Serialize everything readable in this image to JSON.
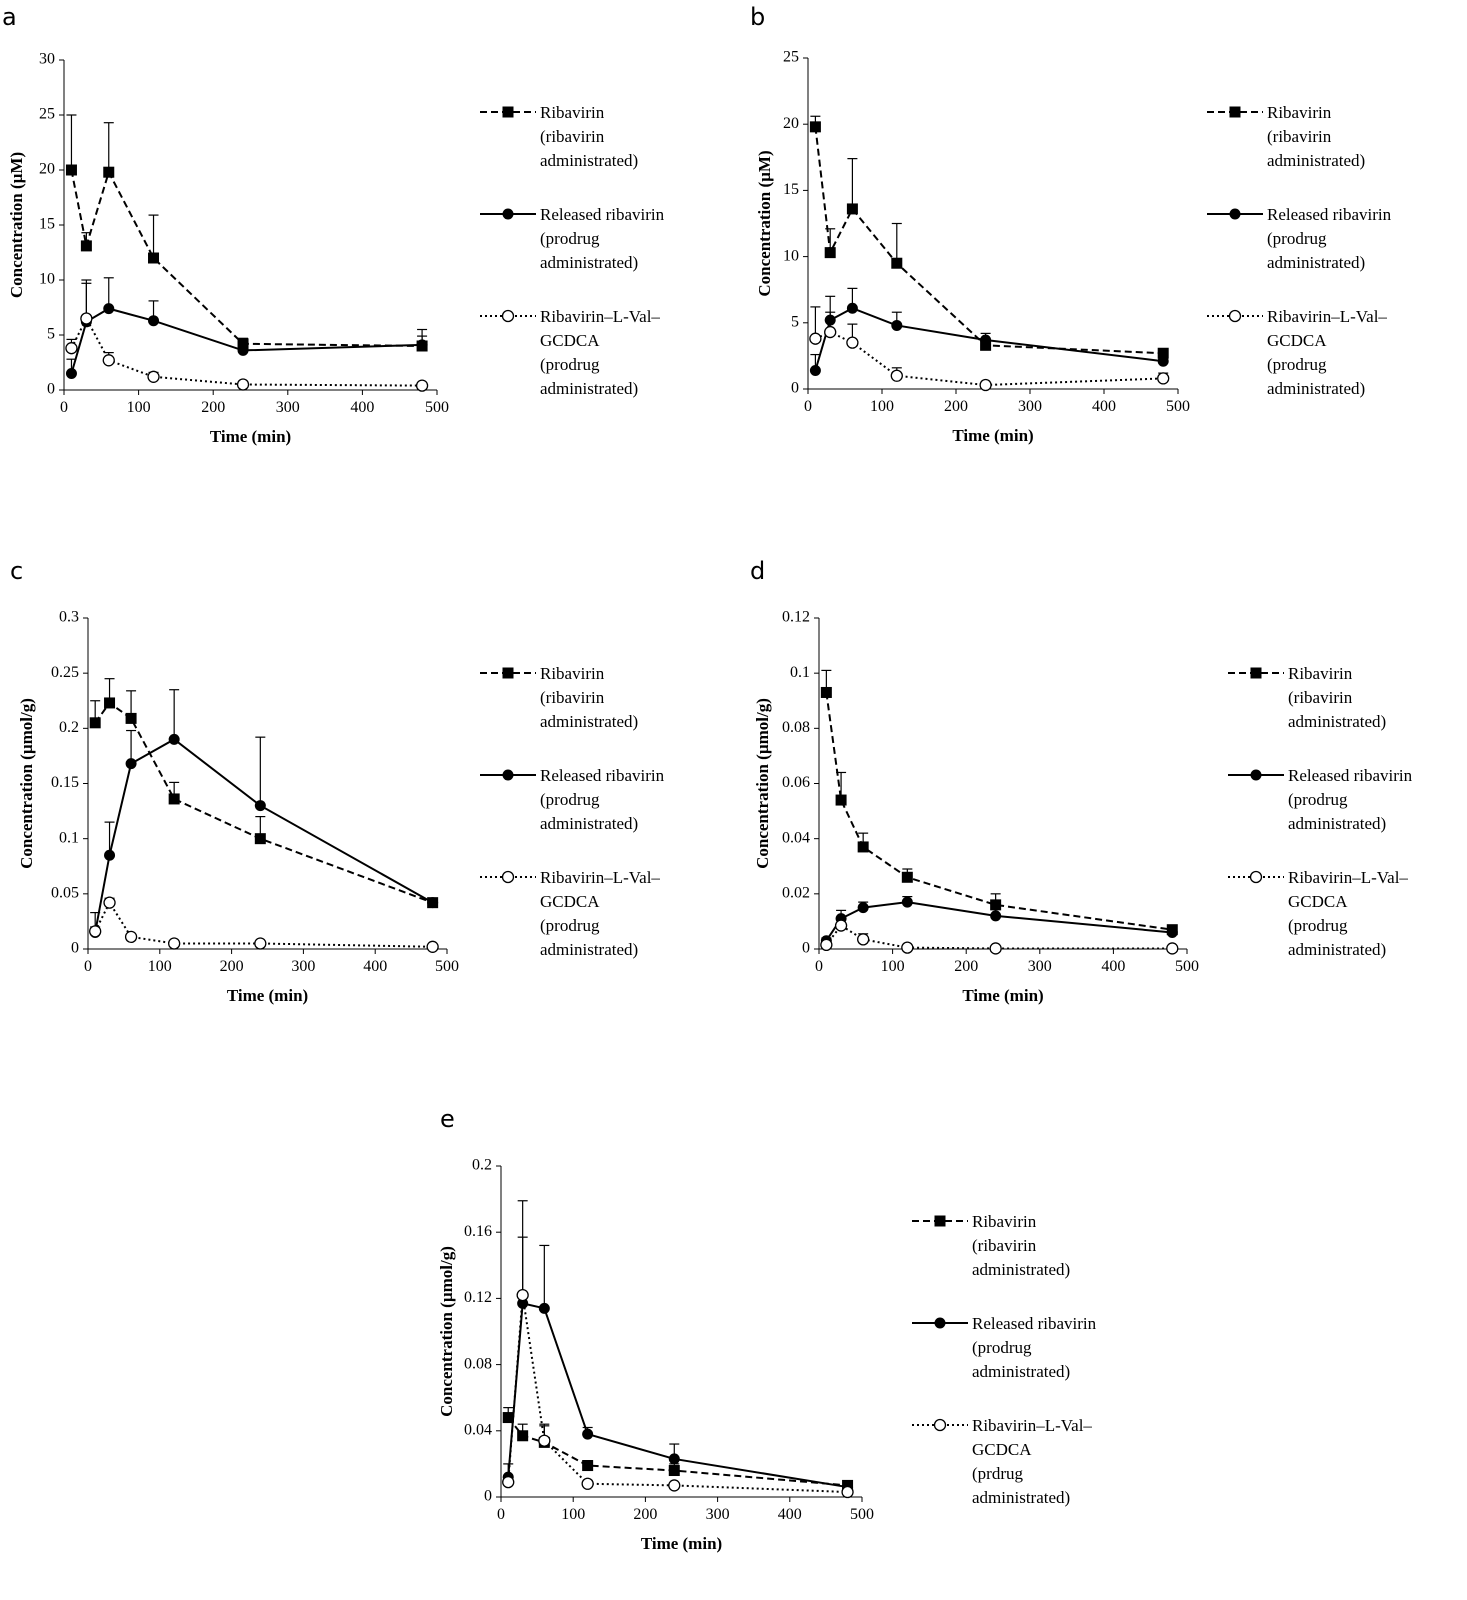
{
  "chart_data": [
    {
      "panel_label": "a",
      "type": "line",
      "xlabel": "Time (min)",
      "ylabel": "Concentration (µM)",
      "xlim": [
        0,
        500
      ],
      "ylim": [
        0,
        30
      ],
      "x_ticks": [
        0,
        100,
        200,
        300,
        400,
        500
      ],
      "y_ticks": [
        0,
        5,
        10,
        15,
        20,
        25,
        30
      ],
      "x_tick_labels": [
        "0",
        "100",
        "200",
        "300",
        "400",
        "500"
      ],
      "y_tick_labels": [
        "0",
        "5",
        "10",
        "15",
        "20",
        "25",
        "30"
      ],
      "grid": false,
      "legend_position": "right",
      "series": [
        {
          "name": [
            "Ribavirin",
            "(ribavirin",
            "administrated)"
          ],
          "style": "dashed",
          "marker": "filled-square",
          "x": [
            10,
            30,
            60,
            120,
            240,
            480
          ],
          "values": [
            20.0,
            13.1,
            19.8,
            12.0,
            4.2,
            4.0
          ],
          "errors": [
            5.0,
            1.2,
            4.5,
            3.9,
            0.5,
            1.5
          ]
        },
        {
          "name": [
            "Released ribavirin",
            "(prodrug",
            "administrated)"
          ],
          "style": "solid",
          "marker": "filled-circle",
          "x": [
            10,
            30,
            60,
            120,
            240,
            480
          ],
          "values": [
            1.5,
            6.2,
            7.4,
            6.3,
            3.6,
            4.1
          ],
          "errors": [
            1.3,
            3.5,
            2.8,
            1.8,
            0.4,
            0.8
          ]
        },
        {
          "name": [
            "Ribavirin–L-Val–",
            "GCDCA",
            "(prodrug",
            "administrated)"
          ],
          "style": "dotted",
          "marker": "open-circle",
          "x": [
            10,
            30,
            60,
            120,
            240,
            480
          ],
          "values": [
            3.8,
            6.5,
            2.7,
            1.2,
            0.5,
            0.4
          ],
          "errors": [
            0.8,
            3.5,
            0.7,
            0.4,
            0.2,
            0.1
          ]
        }
      ]
    },
    {
      "panel_label": "b",
      "type": "line",
      "xlabel": "Time (min)",
      "ylabel": "Concentration (µM)",
      "xlim": [
        0,
        500
      ],
      "ylim": [
        0,
        25
      ],
      "x_ticks": [
        0,
        100,
        200,
        300,
        400,
        500
      ],
      "y_ticks": [
        0,
        5,
        10,
        15,
        20,
        25
      ],
      "x_tick_labels": [
        "0",
        "100",
        "200",
        "300",
        "400",
        "500"
      ],
      "y_tick_labels": [
        "0",
        "5",
        "10",
        "15",
        "20",
        "25"
      ],
      "grid": false,
      "legend_position": "right",
      "series": [
        {
          "name": [
            "Ribavirin",
            "(ribavirin",
            "administrated)"
          ],
          "style": "dashed",
          "marker": "filled-square",
          "x": [
            10,
            30,
            60,
            120,
            240,
            480
          ],
          "values": [
            19.8,
            10.3,
            13.6,
            9.5,
            3.3,
            2.7
          ],
          "errors": [
            0.8,
            1.8,
            3.8,
            3.0,
            0.4,
            0.3
          ]
        },
        {
          "name": [
            "Released ribavirin",
            "(prodrug",
            "administrated)"
          ],
          "style": "solid",
          "marker": "filled-circle",
          "x": [
            10,
            30,
            60,
            120,
            240,
            480
          ],
          "values": [
            1.4,
            5.2,
            6.1,
            4.8,
            3.7,
            2.1
          ],
          "errors": [
            1.2,
            1.8,
            1.5,
            1.0,
            0.5,
            0.3
          ]
        },
        {
          "name": [
            "Ribavirin–L-Val–",
            "GCDCA",
            "(prodrug",
            "administrated)"
          ],
          "style": "dotted",
          "marker": "open-circle",
          "x": [
            10,
            30,
            60,
            120,
            240,
            480
          ],
          "values": [
            3.8,
            4.3,
            3.5,
            1.0,
            0.3,
            0.8
          ],
          "errors": [
            2.4,
            1.5,
            1.4,
            0.6,
            0.1,
            0.4
          ]
        }
      ]
    },
    {
      "panel_label": "c",
      "type": "line",
      "xlabel": "Time (min)",
      "ylabel": "Concentration (µmol/g)",
      "xlim": [
        0,
        500
      ],
      "ylim": [
        0,
        0.3
      ],
      "x_ticks": [
        0,
        100,
        200,
        300,
        400,
        500
      ],
      "y_ticks": [
        0,
        0.05,
        0.1,
        0.15,
        0.2,
        0.25,
        0.3
      ],
      "x_tick_labels": [
        "0",
        "100",
        "200",
        "300",
        "400",
        "500"
      ],
      "y_tick_labels": [
        "0",
        "0.05",
        "0.1",
        "0.15",
        "0.2",
        "0.25",
        "0.3"
      ],
      "grid": false,
      "legend_position": "right",
      "series": [
        {
          "name": [
            "Ribavirin",
            "(ribavirin",
            "administrated)"
          ],
          "style": "dashed",
          "marker": "filled-square",
          "x": [
            10,
            30,
            60,
            120,
            240,
            480
          ],
          "values": [
            0.205,
            0.223,
            0.209,
            0.136,
            0.1,
            0.042
          ],
          "errors": [
            0.02,
            0.022,
            0.025,
            0.015,
            0.02,
            0.003
          ]
        },
        {
          "name": [
            "Released ribavirin",
            "(prodrug",
            "administrated)"
          ],
          "style": "solid",
          "marker": "filled-circle",
          "x": [
            10,
            30,
            60,
            120,
            240,
            480
          ],
          "values": [
            0.015,
            0.085,
            0.168,
            0.19,
            0.13,
            0.042
          ],
          "errors": [
            0.018,
            0.03,
            0.03,
            0.045,
            0.062,
            0.003
          ]
        },
        {
          "name": [
            "Ribavirin–L-Val–",
            "GCDCA",
            "(prodrug",
            "administrated)"
          ],
          "style": "dotted",
          "marker": "open-circle",
          "x": [
            10,
            30,
            60,
            120,
            240,
            480
          ],
          "values": [
            0.016,
            0.042,
            0.011,
            0.005,
            0.005,
            0.002
          ],
          "errors": [
            0.004,
            0.004,
            0.002,
            0.001,
            0.001,
            0.0005
          ]
        }
      ]
    },
    {
      "panel_label": "d",
      "type": "line",
      "xlabel": "Time (min)",
      "ylabel": "Concentration (µmol/g)",
      "xlim": [
        0,
        500
      ],
      "ylim": [
        0,
        0.12
      ],
      "x_ticks": [
        0,
        100,
        200,
        300,
        400,
        500
      ],
      "y_ticks": [
        0,
        0.02,
        0.04,
        0.06,
        0.08,
        0.1,
        0.12
      ],
      "x_tick_labels": [
        "0",
        "100",
        "200",
        "300",
        "400",
        "500"
      ],
      "y_tick_labels": [
        "0",
        "0.02",
        "0.04",
        "0.06",
        "0.08",
        "0.1",
        "0.12"
      ],
      "grid": false,
      "legend_position": "right",
      "series": [
        {
          "name": [
            "Ribavirin",
            "(ribavirin",
            "administrated)"
          ],
          "style": "dashed",
          "marker": "filled-square",
          "x": [
            10,
            30,
            60,
            120,
            240,
            480
          ],
          "values": [
            0.093,
            0.054,
            0.037,
            0.026,
            0.016,
            0.007
          ],
          "errors": [
            0.008,
            0.01,
            0.005,
            0.003,
            0.004,
            0.001
          ]
        },
        {
          "name": [
            "Released ribavirin",
            "(prodrug",
            "administrated)"
          ],
          "style": "solid",
          "marker": "filled-circle",
          "x": [
            10,
            30,
            60,
            120,
            240,
            480
          ],
          "values": [
            0.003,
            0.011,
            0.015,
            0.017,
            0.012,
            0.006
          ],
          "errors": [
            0.001,
            0.003,
            0.002,
            0.002,
            0.003,
            0.001
          ]
        },
        {
          "name": [
            "Ribavirin–L-Val–",
            "GCDCA",
            "(prodrug",
            "administrated)"
          ],
          "style": "dotted",
          "marker": "open-circle",
          "x": [
            10,
            30,
            60,
            120,
            240,
            480
          ],
          "values": [
            0.0015,
            0.0085,
            0.0035,
            0.0005,
            0.0002,
            0.0002
          ],
          "errors": [
            0.0005,
            0.002,
            0.002,
            0.0002,
            0.0001,
            0.0001
          ]
        }
      ]
    },
    {
      "panel_label": "e",
      "type": "line",
      "xlabel": "Time (min)",
      "ylabel": "Concentration (µmol/g)",
      "xlim": [
        0,
        500
      ],
      "ylim": [
        0,
        0.2
      ],
      "x_ticks": [
        0,
        100,
        200,
        300,
        400,
        500
      ],
      "y_ticks": [
        0,
        0.04,
        0.08,
        0.12,
        0.16,
        0.2
      ],
      "x_tick_labels": [
        "0",
        "100",
        "200",
        "300",
        "400",
        "500"
      ],
      "y_tick_labels": [
        "0",
        "0.04",
        "0.08",
        "0.12",
        "0.16",
        "0.2"
      ],
      "grid": false,
      "legend_position": "right",
      "series": [
        {
          "name": [
            "Ribavirin",
            "(ribavirin",
            "administrated)"
          ],
          "style": "dashed",
          "marker": "filled-square",
          "x": [
            10,
            30,
            60,
            120,
            240,
            480
          ],
          "values": [
            0.048,
            0.037,
            0.033,
            0.019,
            0.016,
            0.007
          ],
          "errors": [
            0.006,
            0.007,
            0.011,
            0.003,
            0.004,
            0.001
          ]
        },
        {
          "name": [
            "Released ribavirin",
            "(prodrug",
            "administrated)"
          ],
          "style": "solid",
          "marker": "filled-circle",
          "x": [
            10,
            30,
            60,
            120,
            240,
            480
          ],
          "values": [
            0.012,
            0.117,
            0.114,
            0.038,
            0.023,
            0.006
          ],
          "errors": [
            0.008,
            0.04,
            0.038,
            0.004,
            0.009,
            0.001
          ]
        },
        {
          "name": [
            "Ribavirin–L-Val–",
            "GCDCA",
            "(prdrug",
            "administrated)"
          ],
          "style": "dotted",
          "marker": "open-circle",
          "x": [
            10,
            30,
            60,
            120,
            240,
            480
          ],
          "values": [
            0.009,
            0.122,
            0.034,
            0.008,
            0.007,
            0.003
          ],
          "errors": [
            0.003,
            0.057,
            0.009,
            0.002,
            0.001,
            0.0005
          ]
        }
      ]
    }
  ]
}
